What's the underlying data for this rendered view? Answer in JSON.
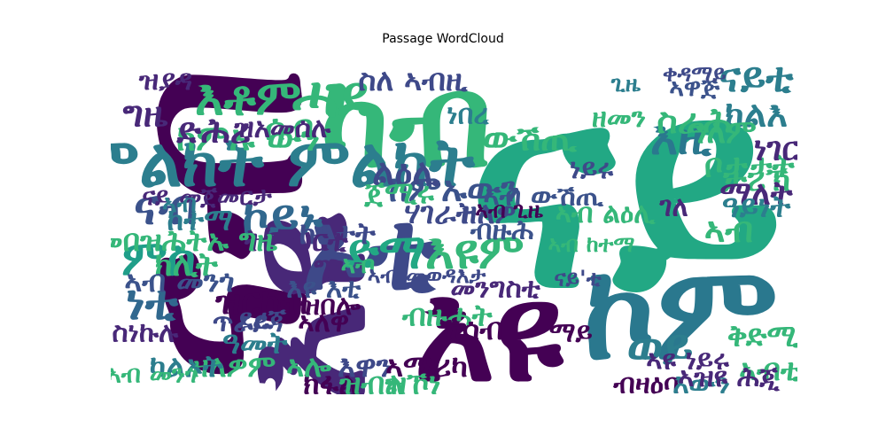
{
  "chart_data": {
    "type": "wordcloud",
    "title": "Passage WordCloud",
    "colormap": "viridis",
    "words": [
      {
        "text": "ናይ",
        "weight": 100,
        "color": "#22a884",
        "rot": 0,
        "fx": 0.75,
        "fy": 0.4
      },
      {
        "text": "ናብ",
        "weight": 88,
        "color": "#440154",
        "rot": 90,
        "fx": 0.15,
        "fy": 0.5
      },
      {
        "text": "እዩ",
        "weight": 62,
        "color": "#482878",
        "rot": 90,
        "fx": 0.28,
        "fy": 0.75
      },
      {
        "text": "እዩ",
        "weight": 48,
        "color": "#440154",
        "rot": 0,
        "fx": 0.55,
        "fy": 0.82
      },
      {
        "text": "ኮም",
        "weight": 46,
        "color": "#2a788e",
        "rot": 0,
        "fx": 0.83,
        "fy": 0.76
      },
      {
        "text": "ካብ",
        "weight": 45,
        "color": "#35b779",
        "rot": 0,
        "fx": 0.43,
        "fy": 0.2
      },
      {
        "text": "ኦቲ",
        "weight": 38,
        "color": "#3e4989",
        "rot": 0,
        "fx": 0.38,
        "fy": 0.58
      },
      {
        "text": "ምልክት ምልክት",
        "weight": 22,
        "color": "#2c7e8e",
        "rot": 0,
        "fx": 0.24,
        "fy": 0.32
      },
      {
        "text": "ሓደ",
        "weight": 18,
        "color": "#35b779",
        "rot": 0,
        "fx": 0.32,
        "fy": 0.13
      },
      {
        "text": "እቶም",
        "weight": 15,
        "color": "#35b779",
        "rot": 0,
        "fx": 0.2,
        "fy": 0.13
      },
      {
        "text": "ናብ",
        "weight": 15,
        "color": "#3b528b",
        "rot": 0,
        "fx": 0.08,
        "fy": 0.45
      },
      {
        "text": "ምስ",
        "weight": 15,
        "color": "#1f9e89",
        "rot": 0,
        "fx": 0.07,
        "fy": 0.6
      },
      {
        "text": "ነቲ",
        "weight": 15,
        "color": "#31688e",
        "rot": 0,
        "fx": 0.06,
        "fy": 0.73
      },
      {
        "text": "ኮይኑ",
        "weight": 15,
        "color": "#31688e",
        "rot": 0,
        "fx": 0.25,
        "fy": 0.48
      },
      {
        "text": "ድማ",
        "weight": 15,
        "color": "#22a884",
        "rot": 0,
        "fx": 0.4,
        "fy": 0.58
      },
      {
        "text": "እዩም",
        "weight": 15,
        "color": "#35b779",
        "rot": 0,
        "fx": 0.53,
        "fy": 0.58
      },
      {
        "text": "ወይ",
        "weight": 15,
        "color": "#2c7e8e",
        "rot": 0,
        "fx": 0.8,
        "fy": 0.86
      },
      {
        "text": "እዚ",
        "weight": 14,
        "color": "#2a788e",
        "rot": 0,
        "fx": 0.83,
        "fy": 0.25
      },
      {
        "text": "ናይቲ",
        "weight": 12,
        "color": "#2c7e8e",
        "rot": 0,
        "fx": 0.94,
        "fy": 0.07
      },
      {
        "text": "ክልእ",
        "weight": 10,
        "color": "#2c7e8e",
        "rot": 0,
        "fx": 0.94,
        "fy": 0.18
      },
      {
        "text": "ስራሕ",
        "weight": 10,
        "color": "#35b779",
        "rot": 0,
        "fx": 0.85,
        "fy": 0.2
      },
      {
        "text": "ውሽጢ",
        "weight": 10,
        "color": "#35b779",
        "rot": 0,
        "fx": 0.61,
        "fy": 0.25
      },
      {
        "text": "ከምኡ ውን",
        "weight": 10,
        "color": "#35b779",
        "rot": 0,
        "fx": 0.2,
        "fy": 0.25
      },
      {
        "text": "ከምኡውን",
        "weight": 10,
        "color": "#3b528b",
        "rot": 0,
        "fx": 0.5,
        "fy": 0.4
      },
      {
        "text": "ዝርከብ",
        "weight": 10,
        "color": "#440154",
        "rot": 0,
        "fx": 0.22,
        "fy": 0.73
      },
      {
        "text": "ግዜ",
        "weight": 10,
        "color": "#482878",
        "rot": 0,
        "fx": 0.05,
        "fy": 0.18
      },
      {
        "text": "ድሕሪ",
        "weight": 10,
        "color": "#482878",
        "rot": 0,
        "fx": 0.15,
        "fy": 0.23
      },
      {
        "text": "ሰብ",
        "weight": 10,
        "color": "#35b779",
        "rot": 0,
        "fx": 0.26,
        "fy": 0.22
      },
      {
        "text": "ልዕሊ",
        "weight": 10,
        "color": "#3e4989",
        "rot": 0,
        "fx": 0.43,
        "fy": 0.35
      },
      {
        "text": "ኣብ",
        "weight": 10,
        "color": "#35b779",
        "rot": 0,
        "fx": 0.9,
        "fy": 0.52
      },
      {
        "text": "ቦታታት",
        "weight": 9,
        "color": "#35b779",
        "rot": 0,
        "fx": 0.93,
        "fy": 0.33
      },
      {
        "text": "ነገር",
        "weight": 9,
        "color": "#482878",
        "rot": 0,
        "fx": 0.97,
        "fy": 0.28
      },
      {
        "text": "ታሪኽ",
        "weight": 9,
        "color": "#35b779",
        "rot": 0,
        "fx": 0.94,
        "fy": 0.37
      },
      {
        "text": "ማለት",
        "weight": 9,
        "color": "#482878",
        "rot": 0,
        "fx": 0.94,
        "fy": 0.41
      },
      {
        "text": "ዓይነት",
        "weight": 8,
        "color": "#2c7e8e",
        "rot": 0,
        "fx": 0.94,
        "fy": 0.45
      },
      {
        "text": "ዓለም",
        "weight": 9,
        "color": "#35b779",
        "rot": 0,
        "fx": 0.89,
        "fy": 0.23
      },
      {
        "text": "ክሊት",
        "weight": 9,
        "color": "#35b779",
        "rot": 0,
        "fx": 0.11,
        "fy": 0.62
      },
      {
        "text": "ግን",
        "weight": 8,
        "color": "#482878",
        "rot": 0,
        "fx": 0.32,
        "fy": 0.63
      },
      {
        "text": "ኣብ መንጎ",
        "weight": 8,
        "color": "#3b528b",
        "rot": 0,
        "fx": 0.1,
        "fy": 0.67
      },
      {
        "text": "ሃገራት",
        "weight": 8,
        "color": "#3e4989",
        "rot": 0,
        "fx": 0.48,
        "fy": 0.47
      },
      {
        "text": "ኩነታት",
        "weight": 8,
        "color": "#3e4989",
        "rot": 0,
        "fx": 0.33,
        "fy": 0.53
      },
      {
        "text": "ትምህርቲ",
        "weight": 8,
        "color": "#482878",
        "rot": 0,
        "fx": 0.27,
        "fy": 0.55
      },
      {
        "text": "መበዝሕትኡ ግዜ",
        "weight": 8,
        "color": "#35b779",
        "rot": 0,
        "fx": 0.11,
        "fy": 0.55
      },
      {
        "text": "ከተማ",
        "weight": 8,
        "color": "#2c7e8e",
        "rot": 0,
        "fx": 0.13,
        "fy": 0.49
      },
      {
        "text": "ዘለዎ",
        "weight": 8,
        "color": "#3e4989",
        "rot": 0,
        "fx": 0.55,
        "fy": 0.47
      },
      {
        "text": "ብዙሓት",
        "weight": 8,
        "color": "#35b779",
        "rot": 0,
        "fx": 0.49,
        "fy": 0.77
      },
      {
        "text": "ክሳብ",
        "weight": 8,
        "color": "#440154",
        "rot": 0,
        "fx": 0.53,
        "fy": 0.81
      },
      {
        "text": "እዋን",
        "weight": 8,
        "color": "#3e4989",
        "rot": 0,
        "fx": 0.37,
        "fy": 0.92
      },
      {
        "text": "ኣሜሪካ",
        "weight": 8,
        "color": "#440154",
        "rot": 0,
        "fx": 0.46,
        "fy": 0.92
      },
      {
        "text": "ዝኾነ",
        "weight": 8,
        "color": "#35b779",
        "rot": 0,
        "fx": 0.44,
        "fy": 0.97
      },
      {
        "text": "ክፋል",
        "weight": 8,
        "color": "#440154",
        "rot": 0,
        "fx": 0.32,
        "fy": 0.97
      },
      {
        "text": "ዝብል",
        "weight": 8,
        "color": "#35b779",
        "rot": 0,
        "fx": 0.38,
        "fy": 0.97
      },
      {
        "text": "ዘለዎም ኣሎ",
        "weight": 8,
        "color": "#35b779",
        "rot": 0,
        "fx": 0.22,
        "fy": 0.92
      },
      {
        "text": "ካልኦት",
        "weight": 8,
        "color": "#2c7e8e",
        "rot": 0,
        "fx": 0.11,
        "fy": 0.92
      },
      {
        "text": "ዓመት",
        "weight": 8,
        "color": "#2c7e8e",
        "rot": 0,
        "fx": 0.21,
        "fy": 0.85
      },
      {
        "text": "ብዛዕባ",
        "weight": 7,
        "color": "#440154",
        "rot": 0,
        "fx": 0.78,
        "fy": 0.97
      },
      {
        "text": "እውን",
        "weight": 7,
        "color": "#2c7e8e",
        "rot": 0,
        "fx": 0.86,
        "fy": 0.97
      },
      {
        "text": "ኣብቲ",
        "weight": 8,
        "color": "#35b779",
        "rot": 0,
        "fx": 0.96,
        "fy": 0.93
      },
      {
        "text": "ቅድሚ",
        "weight": 8,
        "color": "#35b779",
        "rot": 0,
        "fx": 0.95,
        "fy": 0.83
      },
      {
        "text": "ማይ",
        "weight": 7,
        "color": "#440154",
        "rot": 0,
        "fx": 0.67,
        "fy": 0.82
      },
      {
        "text": "ኣዩ ነይሩ",
        "weight": 7,
        "color": "#482878",
        "rot": 0,
        "fx": 0.84,
        "fy": 0.9
      },
      {
        "text": "ኣዝዩ ሕጂ",
        "weight": 7,
        "color": "#482878",
        "rot": 0,
        "fx": 0.9,
        "fy": 0.95
      },
      {
        "text": "ነይሩ",
        "weight": 7,
        "color": "#3e4989",
        "rot": 0,
        "fx": 0.7,
        "fy": 0.34
      },
      {
        "text": "ጀሚሩ",
        "weight": 8,
        "color": "#35b779",
        "rot": 0,
        "fx": 0.42,
        "fy": 0.41
      },
      {
        "text": "ገለ",
        "weight": 7,
        "color": "#482878",
        "rot": 0,
        "fx": 0.82,
        "fy": 0.45
      },
      {
        "text": "ኣብ ልዕሊ",
        "weight": 7,
        "color": "#35b779",
        "rot": 0,
        "fx": 0.72,
        "fy": 0.47
      },
      {
        "text": "ብዙሕ",
        "weight": 7,
        "color": "#3b528b",
        "rot": 0,
        "fx": 0.57,
        "fy": 0.52
      },
      {
        "text": "ዝአመሰሉ",
        "weight": 7,
        "color": "#482878",
        "rot": 0,
        "fx": 0.25,
        "fy": 0.22
      },
      {
        "text": "ኣብ ውሽጢ",
        "weight": 7,
        "color": "#3b528b",
        "rot": 0,
        "fx": 0.63,
        "fy": 0.42
      },
      {
        "text": "ጥራይ",
        "weight": 7,
        "color": "#3e4989",
        "rot": 0,
        "fx": 0.19,
        "fy": 0.79
      },
      {
        "text": "እዩ እቲ",
        "weight": 7,
        "color": "#3b528b",
        "rot": 0,
        "fx": 0.31,
        "fy": 0.69
      },
      {
        "text": "ዝበሎ",
        "weight": 7,
        "color": "#440154",
        "rot": 0,
        "fx": 0.32,
        "fy": 0.74
      },
      {
        "text": "ኣለዋ",
        "weight": 7,
        "color": "#440154",
        "rot": 0,
        "fx": 0.31,
        "fy": 0.79
      },
      {
        "text": "ደረጃ",
        "weight": 7,
        "color": "#3e4989",
        "rot": 0,
        "fx": 0.22,
        "fy": 0.78
      },
      {
        "text": "ስነኩሉ",
        "weight": 7,
        "color": "#482878",
        "rot": 0,
        "fx": 0.05,
        "fy": 0.82
      },
      {
        "text": "ኣብ መንጎ",
        "weight": 6,
        "color": "#35b779",
        "rot": 0,
        "fx": 0.06,
        "fy": 0.94
      },
      {
        "text": "ናይ መጀመርታ",
        "weight": 6,
        "color": "#482878",
        "rot": 0,
        "fx": 0.14,
        "fy": 0.42
      },
      {
        "text": "ዝያዳ",
        "weight": 7,
        "color": "#482878",
        "rot": 0,
        "fx": 0.08,
        "fy": 0.08
      },
      {
        "text": "ኣብ",
        "weight": 6,
        "color": "#35b779",
        "rot": 0,
        "fx": 0.36,
        "fy": 0.62
      },
      {
        "text": "ኣብ መወዳእታ",
        "weight": 5,
        "color": "#3e4989",
        "rot": 0,
        "fx": 0.46,
        "fy": 0.65
      },
      {
        "text": "መንግስቲ",
        "weight": 7,
        "color": "#482878",
        "rot": 0,
        "fx": 0.56,
        "fy": 0.69
      },
      {
        "text": "ስለ ኣብዚ",
        "weight": 8,
        "color": "#3e4989",
        "rot": 0,
        "fx": 0.44,
        "fy": 0.08
      },
      {
        "text": "ነበረ",
        "weight": 7,
        "color": "#2c7e8e",
        "rot": 0,
        "fx": 0.52,
        "fy": 0.18
      },
      {
        "text": "ጊዜ",
        "weight": 5,
        "color": "#2c7e8e",
        "rot": 0,
        "fx": 0.75,
        "fy": 0.09
      },
      {
        "text": "ዘመን",
        "weight": 7,
        "color": "#35b779",
        "rot": 0,
        "fx": 0.74,
        "fy": 0.19
      },
      {
        "text": "ኣዋጅ",
        "weight": 6,
        "color": "#3b528b",
        "rot": 0,
        "fx": 0.85,
        "fy": 0.1
      },
      {
        "text": "ቀዳማይ",
        "weight": 5,
        "color": "#3e4989",
        "rot": 0,
        "fx": 0.85,
        "fy": 0.06
      },
      {
        "text": "ኣብ",
        "weight": 6,
        "color": "#2c7e8e",
        "rot": 0,
        "fx": 0.1,
        "fy": 0.44
      },
      {
        "text": "ኣብ ከተማ",
        "weight": 5,
        "color": "#35b779",
        "rot": 0,
        "fx": 0.7,
        "fy": 0.56
      },
      {
        "text": "ናይ'ቲ",
        "weight": 5,
        "color": "#3e4989",
        "rot": 0,
        "fx": 0.68,
        "fy": 0.66
      },
      {
        "text": "ኣብ ጊዜ",
        "weight": 5,
        "color": "#440154",
        "rot": 0,
        "fx": 0.58,
        "fy": 0.46
      }
    ]
  }
}
